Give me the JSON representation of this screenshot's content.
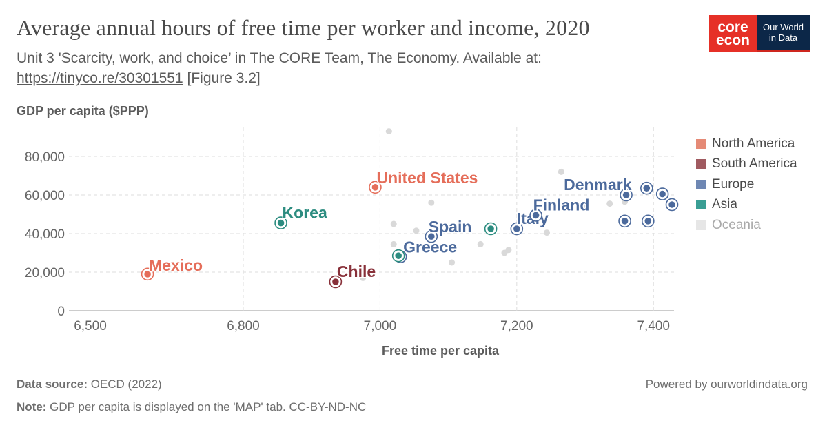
{
  "header": {
    "title": "Average annual hours of free time per worker and income, 2020",
    "subtitle_line1": "Unit 3 'Scarcity, work, and choice’ in The CORE Team, The Economy. Available at:",
    "subtitle_link": "https://tinyco.re/30301551",
    "subtitle_suffix": " [Figure 3.2]"
  },
  "logo": {
    "core_top": "core",
    "core_bottom": "econ",
    "owid_top": "Our World",
    "owid_bottom": "in Data"
  },
  "footer": {
    "source_label": "Data source:",
    "source_text": " OECD (2022)",
    "note_label": "Note:",
    "note_text": " GDP per capita is displayed on the 'MAP' tab. CC-BY-ND-NC",
    "powered": "Powered by ourworldindata.org"
  },
  "colors": {
    "North America": "#e56e5a",
    "South America": "#883039",
    "Europe": "#4c6a9c",
    "Asia": "#2c8c80",
    "Oceania": "#e0e0e0",
    "background_point": "#d9d9d9",
    "grid": "#dddddd"
  },
  "chart_data": {
    "type": "scatter",
    "title": "Average annual hours of free time per worker and income, 2020",
    "xlabel": "Free time per capita",
    "ylabel": "GDP per capita ($PPP)",
    "xlim": [
      6545,
      7430
    ],
    "ylim": [
      0,
      95000
    ],
    "xticks": [
      6500,
      6800,
      7000,
      7200,
      7400
    ],
    "xtick_labels": [
      "6,500",
      "6,800",
      "7,000",
      "7,200",
      "7,400"
    ],
    "yticks": [
      0,
      20000,
      40000,
      60000,
      80000
    ],
    "ytick_labels": [
      "0",
      "20,000",
      "40,000",
      "60,000",
      "80,000"
    ],
    "grid": true,
    "legend_position": "right",
    "legend": [
      "North America",
      "South America",
      "Europe",
      "Asia",
      "Oceania"
    ],
    "highlighted": [
      {
        "name": "Mexico",
        "region": "North America",
        "x": 6660,
        "y": 19000,
        "labeled": true
      },
      {
        "name": "United States",
        "region": "North America",
        "x": 6993,
        "y": 64000,
        "labeled": true
      },
      {
        "name": "Chile",
        "region": "South America",
        "x": 6935,
        "y": 15000,
        "labeled": true
      },
      {
        "name": "Korea",
        "region": "Asia",
        "x": 6855,
        "y": 45500,
        "labeled": true
      },
      {
        "name": "Greece",
        "region": "Europe",
        "x": 7030,
        "y": 28000,
        "labeled": true
      },
      {
        "name": "Spain",
        "region": "Europe",
        "x": 7075,
        "y": 38500,
        "labeled": true
      },
      {
        "name": "Italy",
        "region": "Europe",
        "x": 7200,
        "y": 42500,
        "labeled": true
      },
      {
        "name": "Finland",
        "region": "Europe",
        "x": 7228,
        "y": 49500,
        "labeled": true
      },
      {
        "name": "Denmark",
        "region": "Europe",
        "x": 7360,
        "y": 60000,
        "labeled": true
      },
      {
        "name": "",
        "region": "Asia",
        "x": 7027,
        "y": 28500,
        "labeled": false
      },
      {
        "name": "",
        "region": "Asia",
        "x": 7162,
        "y": 42500,
        "labeled": false
      },
      {
        "name": "",
        "region": "Europe",
        "x": 7358,
        "y": 46500,
        "labeled": false
      },
      {
        "name": "",
        "region": "Europe",
        "x": 7392,
        "y": 46500,
        "labeled": false
      },
      {
        "name": "",
        "region": "Europe",
        "x": 7390,
        "y": 63500,
        "labeled": false
      },
      {
        "name": "",
        "region": "Europe",
        "x": 7413,
        "y": 60500,
        "labeled": false
      },
      {
        "name": "",
        "region": "Europe",
        "x": 7427,
        "y": 55000,
        "labeled": false
      }
    ],
    "background_points": [
      {
        "x": 7013,
        "y": 93000
      },
      {
        "x": 7265,
        "y": 72000
      },
      {
        "x": 7075,
        "y": 56000
      },
      {
        "x": 7020,
        "y": 45000
      },
      {
        "x": 7053,
        "y": 41500
      },
      {
        "x": 7020,
        "y": 34500
      },
      {
        "x": 7147,
        "y": 34500
      },
      {
        "x": 7188,
        "y": 31500
      },
      {
        "x": 7182,
        "y": 30000
      },
      {
        "x": 7105,
        "y": 25000
      },
      {
        "x": 7244,
        "y": 40500
      },
      {
        "x": 7336,
        "y": 55500
      },
      {
        "x": 7358,
        "y": 56500
      },
      {
        "x": 7298,
        "y": 53500
      },
      {
        "x": 6975,
        "y": 17000
      }
    ]
  }
}
